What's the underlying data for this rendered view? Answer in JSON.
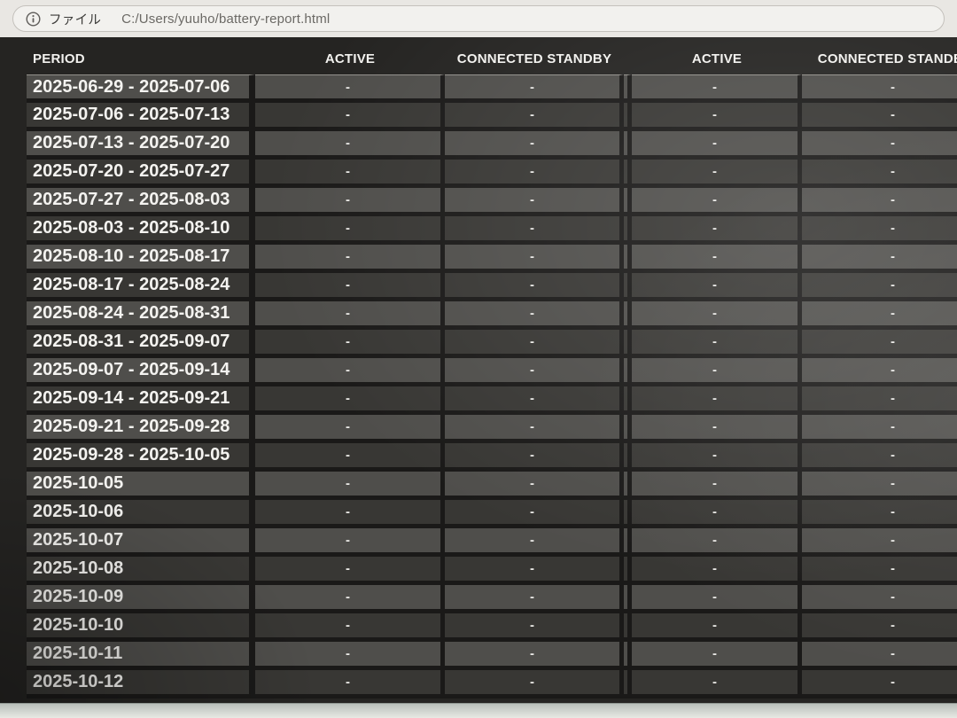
{
  "browser": {
    "info_icon": "info-circle-icon",
    "url_chip_label": "ファイル",
    "url": "C:/Users/yuuho/battery-report.html"
  },
  "colors": {
    "page_bg": "#252422",
    "row_light": "#4f4e4b",
    "row_dark": "#383734",
    "cell_border": "#1a1918",
    "header_text": "#f2f1ee",
    "toolbar_bg": "#e9e7e3"
  },
  "table": {
    "columns": [
      "PERIOD",
      "ACTIVE",
      "CONNECTED STANDBY",
      "ACTIVE",
      "CONNECTED STANDBY"
    ],
    "rows": [
      {
        "period": "2025-06-29 - 2025-07-06",
        "values": [
          "-",
          "-",
          "-",
          "-"
        ]
      },
      {
        "period": "2025-07-06 - 2025-07-13",
        "values": [
          "-",
          "-",
          "-",
          "-"
        ]
      },
      {
        "period": "2025-07-13 - 2025-07-20",
        "values": [
          "-",
          "-",
          "-",
          "-"
        ]
      },
      {
        "period": "2025-07-20 - 2025-07-27",
        "values": [
          "-",
          "-",
          "-",
          "-"
        ]
      },
      {
        "period": "2025-07-27 - 2025-08-03",
        "values": [
          "-",
          "-",
          "-",
          "-"
        ]
      },
      {
        "period": "2025-08-03 - 2025-08-10",
        "values": [
          "-",
          "-",
          "-",
          "-"
        ]
      },
      {
        "period": "2025-08-10 - 2025-08-17",
        "values": [
          "-",
          "-",
          "-",
          "-"
        ]
      },
      {
        "period": "2025-08-17 - 2025-08-24",
        "values": [
          "-",
          "-",
          "-",
          "-"
        ]
      },
      {
        "period": "2025-08-24 - 2025-08-31",
        "values": [
          "-",
          "-",
          "-",
          "-"
        ]
      },
      {
        "period": "2025-08-31 - 2025-09-07",
        "values": [
          "-",
          "-",
          "-",
          "-"
        ]
      },
      {
        "period": "2025-09-07 - 2025-09-14",
        "values": [
          "-",
          "-",
          "-",
          "-"
        ]
      },
      {
        "period": "2025-09-14 - 2025-09-21",
        "values": [
          "-",
          "-",
          "-",
          "-"
        ]
      },
      {
        "period": "2025-09-21 - 2025-09-28",
        "values": [
          "-",
          "-",
          "-",
          "-"
        ]
      },
      {
        "period": "2025-09-28 - 2025-10-05",
        "values": [
          "-",
          "-",
          "-",
          "-"
        ]
      },
      {
        "period": "2025-10-05",
        "values": [
          "-",
          "-",
          "-",
          "-"
        ]
      },
      {
        "period": "2025-10-06",
        "values": [
          "-",
          "-",
          "-",
          "-"
        ]
      },
      {
        "period": "2025-10-07",
        "values": [
          "-",
          "-",
          "-",
          "-"
        ]
      },
      {
        "period": "2025-10-08",
        "values": [
          "-",
          "-",
          "-",
          "-"
        ]
      },
      {
        "period": "2025-10-09",
        "values": [
          "-",
          "-",
          "-",
          "-"
        ]
      },
      {
        "period": "2025-10-10",
        "values": [
          "-",
          "-",
          "-",
          "-"
        ]
      },
      {
        "period": "2025-10-11",
        "values": [
          "-",
          "-",
          "-",
          "-"
        ]
      },
      {
        "period": "2025-10-12",
        "values": [
          "-",
          "-",
          "-",
          "-"
        ]
      }
    ]
  }
}
